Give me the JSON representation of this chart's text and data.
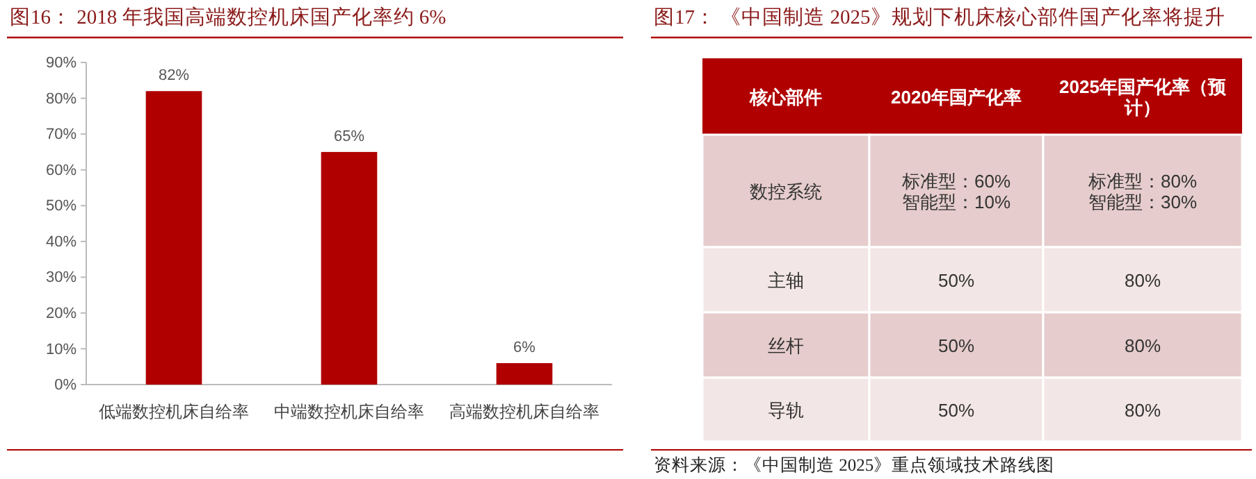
{
  "chart_data": [
    {
      "type": "bar",
      "title": "图16：  2018 年我国高端数控机床国产化率约 6%",
      "categories": [
        "低端数控机床自给率",
        "中端数控机床自给率",
        "高端数控机床自给率"
      ],
      "values": [
        82,
        65,
        6
      ],
      "value_labels": [
        "82%",
        "65%",
        "6%"
      ],
      "color": "#b00000",
      "ylim": [
        0,
        90
      ],
      "yticks": [
        {
          "value": 0,
          "label": "0%"
        },
        {
          "value": 10,
          "label": "10%"
        },
        {
          "value": 20,
          "label": "20%"
        },
        {
          "value": 30,
          "label": "30%"
        },
        {
          "value": 40,
          "label": "40%"
        },
        {
          "value": 50,
          "label": "50%"
        },
        {
          "value": 60,
          "label": "60%"
        },
        {
          "value": 70,
          "label": "70%"
        },
        {
          "value": 80,
          "label": "80%"
        },
        {
          "value": 90,
          "label": "90%"
        }
      ],
      "grid": false
    },
    {
      "type": "heatmap",
      "title": "图17：  《中国制造 2025》规划下机床核心部件国产化率将提升",
      "ylabel": "核心部件",
      "categories": [
        "2020年国产化率",
        "2025年国产化率（预计）"
      ],
      "y_categories": [
        "数控系统",
        "主轴",
        "丝杆",
        "导轨"
      ],
      "cells": [
        [
          null,
          null
        ],
        [
          null,
          null
        ],
        [
          null,
          null
        ],
        [
          null,
          null
        ]
      ],
      "cell_labels": [
        [
          "标准型：60%\n智能型：10%",
          "标准型：80%\n智能型：30%"
        ],
        [
          "50%",
          "80%"
        ],
        [
          "50%",
          "80%"
        ],
        [
          "50%",
          "80%"
        ]
      ],
      "annotations": [
        "资料来源：《中国制造 2025》重点领域技术路线图"
      ]
    }
  ]
}
